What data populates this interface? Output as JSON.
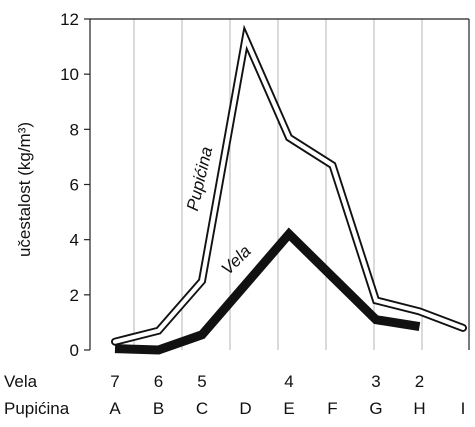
{
  "chart_data": {
    "type": "line",
    "ylabel": "učestalost (kg/m³)",
    "ylim": [
      0,
      12
    ],
    "yticks": [
      "0",
      "2",
      "4",
      "6",
      "8",
      "10",
      "12"
    ],
    "grid": "vertical",
    "categories": [
      "A",
      "B",
      "C",
      "D",
      "E",
      "F",
      "G",
      "H",
      "I"
    ],
    "row_labels": [
      {
        "name": "Vela",
        "values": [
          "7",
          "6",
          "5",
          "",
          "4",
          "",
          "3",
          "2",
          ""
        ]
      },
      {
        "name": "Pupićina",
        "values": [
          "A",
          "B",
          "C",
          "D",
          "E",
          "F",
          "G",
          "H",
          "I"
        ]
      }
    ],
    "series": [
      {
        "name": "Pupićina",
        "style": "outlined",
        "color": "#111111",
        "points": [
          {
            "x": "A",
            "y": 0.3
          },
          {
            "x": "B",
            "y": 0.7
          },
          {
            "x": "C",
            "y": 2.5
          },
          {
            "x": "D",
            "y": 11.3
          },
          {
            "x": "E",
            "y": 7.7
          },
          {
            "x": "F",
            "y": 6.7
          },
          {
            "x": "G",
            "y": 1.8
          },
          {
            "x": "H",
            "y": 1.4
          },
          {
            "x": "I",
            "y": 0.8
          }
        ]
      },
      {
        "name": "Vela",
        "style": "thick",
        "color": "#111111",
        "points": [
          {
            "x": "A",
            "y": 0.05
          },
          {
            "x": "B",
            "y": 0.0
          },
          {
            "x": "C",
            "y": 0.55
          },
          {
            "x": "E",
            "y": 4.2
          },
          {
            "x": "G",
            "y": 1.1
          },
          {
            "x": "H",
            "y": 0.85
          }
        ]
      }
    ]
  }
}
